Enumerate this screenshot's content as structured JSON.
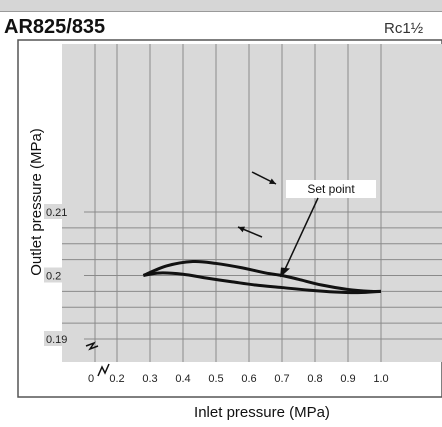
{
  "header": {
    "model": "AR825/835",
    "port_size": "Rc1½"
  },
  "chart_data": {
    "type": "line",
    "xlabel": "Inlet pressure (MPa)",
    "ylabel": "Outlet pressure (MPa)",
    "x_ticks": [
      "0",
      "0.2",
      "0.3",
      "0.4",
      "0.5",
      "0.6",
      "0.7",
      "0.8",
      "0.9",
      "1.0"
    ],
    "y_ticks": [
      "0.21",
      "0.2",
      "0.19"
    ],
    "xlim": [
      0.2,
      1.0
    ],
    "ylim": [
      0.19,
      0.21
    ],
    "axis_break_x": true,
    "grid": true,
    "series": [
      {
        "x": [
          0.28,
          0.35,
          0.43,
          0.5,
          0.58,
          0.65,
          0.7,
          0.75,
          0.82,
          0.9,
          0.97,
          1.0
        ],
        "y": [
          0.2,
          0.2015,
          0.2022,
          0.2019,
          0.2012,
          0.2004,
          0.2,
          0.1994,
          0.1985,
          0.1978,
          0.1975,
          0.1975
        ]
      },
      {
        "x": [
          0.28,
          0.33,
          0.4,
          0.47,
          0.55,
          0.62,
          0.7,
          0.78,
          0.86,
          0.93,
          1.0
        ],
        "y": [
          0.2,
          0.2004,
          0.2002,
          0.1996,
          0.199,
          0.1985,
          0.1981,
          0.1977,
          0.1974,
          0.1973,
          0.1975
        ]
      }
    ],
    "annotations": [
      {
        "text": "Set point",
        "x": 0.7,
        "y": 0.2
      }
    ]
  }
}
